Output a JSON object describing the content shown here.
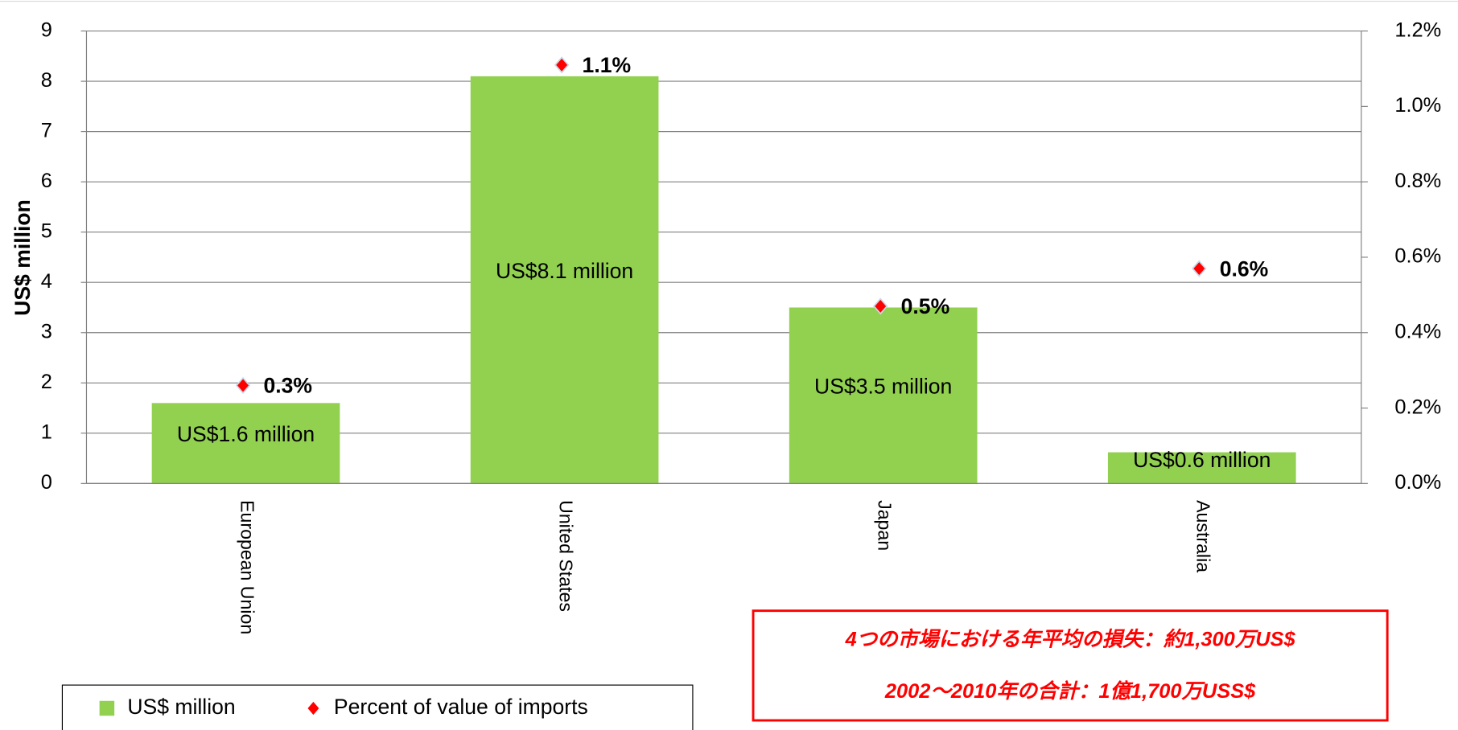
{
  "chart_data": {
    "type": "bar",
    "y_label": "US$ million",
    "categories": [
      "European Union",
      "United States",
      "Japan",
      "Australia"
    ],
    "series": [
      {
        "name": "US$ million",
        "type": "bar",
        "color": "#92d050",
        "values": [
          1.6,
          8.1,
          3.5,
          0.62
        ],
        "value_labels": [
          "US$1.6 million",
          "US$8.1 million",
          "US$3.5 million",
          "US$0.6 million"
        ]
      },
      {
        "name": "Percent of value of imports",
        "type": "scatter",
        "axis": "y2",
        "color": "#ff0000",
        "values": [
          0.26,
          1.11,
          0.47,
          0.57
        ],
        "value_labels": [
          "0.3%",
          "1.1%",
          "0.5%",
          "0.6%"
        ]
      }
    ],
    "ylim": [
      0,
      9
    ],
    "yticks": [
      0,
      1,
      2,
      3,
      4,
      5,
      6,
      7,
      8,
      9
    ],
    "y2lim": [
      0,
      1.2
    ],
    "y2ticks": [
      {
        "value": 0,
        "label": "0.0%"
      },
      {
        "value": 0.2,
        "label": "0.2%"
      },
      {
        "value": 0.4,
        "label": "0.4%"
      },
      {
        "value": 0.6,
        "label": "0.6%"
      },
      {
        "value": 0.8,
        "label": "0.8%"
      },
      {
        "value": 1.0,
        "label": "1.0%"
      },
      {
        "value": 1.2,
        "label": "1.2%"
      }
    ],
    "grid": true,
    "legend": "bottom-left",
    "annotations": [
      "4つの市場における年平均の損失：約1,300万US$",
      "2002～2010年の合計：1億1,700万USS$"
    ]
  }
}
